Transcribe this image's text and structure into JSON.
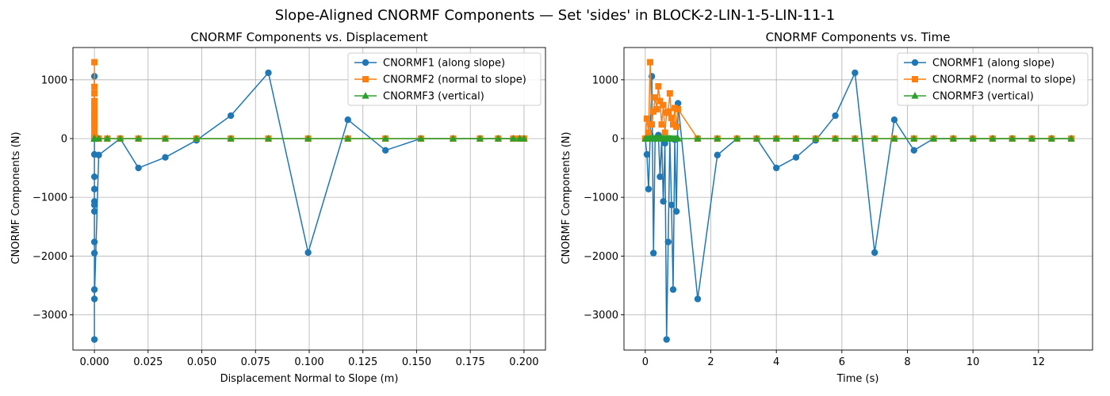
{
  "figure": {
    "title": "Slope-Aligned CNORMF Components — Set 'sides' in BLOCK-2-LIN-1-5-LIN-11-1"
  },
  "colors": {
    "CNORMF1": "#1f77b4",
    "CNORMF2": "#ff7f0e",
    "CNORMF3": "#2ca02c",
    "grid": "#b0b0b0"
  },
  "chart_data": [
    {
      "type": "line",
      "title": "CNORMF Components vs. Displacement",
      "xlabel": "Displacement Normal to Slope (m)",
      "ylabel": "CNORMF Components (N)",
      "xlim": [
        -0.01,
        0.21
      ],
      "ylim": [
        -3600,
        1550
      ],
      "xticks": [
        0.0,
        0.025,
        0.05,
        0.075,
        0.1,
        0.125,
        0.15,
        0.175,
        0.2
      ],
      "xtick_labels": [
        "0.000",
        "0.025",
        "0.050",
        "0.075",
        "0.100",
        "0.125",
        "0.150",
        "0.175",
        "0.200"
      ],
      "yticks": [
        -3000,
        -2000,
        -1000,
        0,
        1000
      ],
      "ytick_labels": [
        "−3000",
        "−2000",
        "−1000",
        "0",
        "1000"
      ],
      "grid": true,
      "legend_position": "top-right",
      "series": [
        {
          "name": "CNORMF1 (along slope)",
          "marker": "circle",
          "x": [
            0.0,
            0.0,
            0.0,
            0.0,
            0.0,
            0.0,
            0.0,
            0.0,
            0.0,
            0.0,
            0.0,
            0.0,
            0.0,
            0.0,
            0.0,
            0.0,
            0.002,
            0.012,
            0.0205,
            0.033,
            0.0475,
            0.0635,
            0.081,
            0.0995,
            0.118,
            0.1355,
            0.152,
            0.167,
            0.1795,
            0.188,
            0.195,
            0.198,
            0.2
          ],
          "y": [
            0,
            -270,
            1060,
            -860,
            60,
            -650,
            -1070,
            0,
            -3420,
            -1760,
            -1130,
            -1240,
            0,
            -2570,
            -1950,
            -2730,
            -280,
            0,
            -500,
            -320,
            -30,
            390,
            1120,
            -1940,
            320,
            -200,
            0,
            0,
            0,
            0,
            0,
            0,
            0
          ]
        },
        {
          "name": "CNORMF2 (normal to slope)",
          "marker": "square",
          "x": [
            0.0,
            0.0,
            0.0,
            0.0,
            0.0,
            0.0,
            0.0,
            0.0,
            0.0,
            0.0,
            0.0,
            0.0,
            0.0,
            0.0,
            0.0,
            0.002,
            0.006,
            0.012,
            0.0205,
            0.033,
            0.0475,
            0.0635,
            0.081,
            0.0995,
            0.118,
            0.1355,
            0.152,
            0.167,
            0.1795,
            0.188,
            0.195,
            0.198,
            0.2
          ],
          "y": [
            0,
            340,
            1300,
            100,
            880,
            640,
            240,
            570,
            460,
            770,
            350,
            240,
            440,
            520,
            200,
            0,
            0,
            0,
            0,
            0,
            0,
            0,
            0,
            0,
            0,
            0,
            0,
            0,
            0,
            0,
            0,
            0,
            0
          ]
        },
        {
          "name": "CNORMF3 (vertical)",
          "marker": "triangle",
          "x": [
            0.0,
            0.0,
            0.0,
            0.0,
            0.0,
            0.0,
            0.0,
            0.0,
            0.0,
            0.0,
            0.0,
            0.0,
            0.0,
            0.0,
            0.0,
            0.002,
            0.006,
            0.012,
            0.0205,
            0.033,
            0.0475,
            0.0635,
            0.081,
            0.0995,
            0.118,
            0.1355,
            0.152,
            0.167,
            0.1795,
            0.188,
            0.195,
            0.198,
            0.2
          ],
          "y": [
            0,
            0,
            0,
            0,
            0,
            0,
            0,
            0,
            0,
            0,
            0,
            0,
            0,
            0,
            0,
            0,
            0,
            0,
            0,
            0,
            0,
            0,
            0,
            0,
            0,
            0,
            0,
            0,
            0,
            0,
            0,
            0,
            0
          ]
        }
      ]
    },
    {
      "type": "line",
      "title": "CNORMF Components vs. Time",
      "xlabel": "Time (s)",
      "ylabel": "CNORMF Components (N)",
      "xlim": [
        -0.65,
        13.65
      ],
      "ylim": [
        -3600,
        1550
      ],
      "xticks": [
        0,
        2,
        4,
        6,
        8,
        10,
        12
      ],
      "xtick_labels": [
        "0",
        "2",
        "4",
        "6",
        "8",
        "10",
        "12"
      ],
      "yticks": [
        -3000,
        -2000,
        -1000,
        0,
        1000
      ],
      "ytick_labels": [
        "−3000",
        "−2000",
        "−1000",
        "0",
        "1000"
      ],
      "grid": true,
      "legend_position": "top-right",
      "series": [
        {
          "name": "CNORMF1 (along slope)",
          "marker": "circle",
          "x": [
            0.0,
            0.05,
            0.1,
            0.15,
            0.2,
            0.25,
            0.3,
            0.4,
            0.45,
            0.5,
            0.55,
            0.6,
            0.65,
            0.7,
            0.75,
            0.8,
            0.85,
            0.9,
            0.95,
            1.0,
            1.6,
            2.2,
            2.8,
            3.4,
            4.0,
            4.6,
            5.2,
            5.8,
            6.4,
            7.0,
            7.6,
            8.2,
            8.8,
            9.4,
            10.0,
            10.6,
            11.2,
            11.8,
            12.4,
            13.0
          ],
          "y": [
            0,
            -270,
            -860,
            70,
            1060,
            -1950,
            0,
            60,
            -650,
            0,
            -1070,
            -80,
            -3420,
            -1760,
            0,
            -1130,
            -2570,
            -20,
            -1240,
            600,
            -2730,
            -280,
            0,
            0,
            -500,
            -320,
            -30,
            390,
            1120,
            -1940,
            320,
            -200,
            0,
            0,
            0,
            0,
            0,
            0,
            0,
            0
          ]
        },
        {
          "name": "CNORMF2 (normal to slope)",
          "marker": "square",
          "x": [
            0.0,
            0.05,
            0.1,
            0.15,
            0.2,
            0.25,
            0.3,
            0.35,
            0.4,
            0.45,
            0.5,
            0.55,
            0.6,
            0.65,
            0.7,
            0.75,
            0.8,
            0.85,
            0.9,
            0.95,
            1.0,
            1.6,
            2.2,
            2.8,
            3.4,
            4.0,
            4.6,
            5.2,
            5.8,
            6.4,
            7.0,
            7.6,
            8.2,
            8.8,
            9.4,
            10.0,
            10.6,
            11.2,
            11.8,
            12.4,
            13.0
          ],
          "y": [
            0,
            340,
            100,
            1300,
            240,
            460,
            700,
            500,
            890,
            640,
            240,
            570,
            100,
            440,
            460,
            770,
            350,
            240,
            520,
            200,
            500,
            0,
            0,
            0,
            0,
            0,
            0,
            0,
            0,
            0,
            0,
            0,
            0,
            0,
            0,
            0,
            0,
            0,
            0,
            0,
            0
          ]
        },
        {
          "name": "CNORMF3 (vertical)",
          "marker": "triangle",
          "x": [
            0.0,
            0.05,
            0.1,
            0.15,
            0.2,
            0.25,
            0.3,
            0.35,
            0.4,
            0.45,
            0.5,
            0.55,
            0.6,
            0.65,
            0.7,
            0.75,
            0.8,
            0.85,
            0.9,
            0.95,
            1.0,
            1.6,
            2.2,
            2.8,
            3.4,
            4.0,
            4.6,
            5.2,
            5.8,
            6.4,
            7.0,
            7.6,
            8.2,
            8.8,
            9.4,
            10.0,
            10.6,
            11.2,
            11.8,
            12.4,
            13.0
          ],
          "y": [
            0,
            0,
            0,
            0,
            0,
            0,
            0,
            0,
            0,
            0,
            0,
            0,
            0,
            0,
            0,
            0,
            0,
            0,
            0,
            0,
            0,
            0,
            0,
            0,
            0,
            0,
            0,
            0,
            0,
            0,
            0,
            0,
            0,
            0,
            0,
            0,
            0,
            0,
            0,
            0,
            0
          ]
        }
      ]
    }
  ]
}
